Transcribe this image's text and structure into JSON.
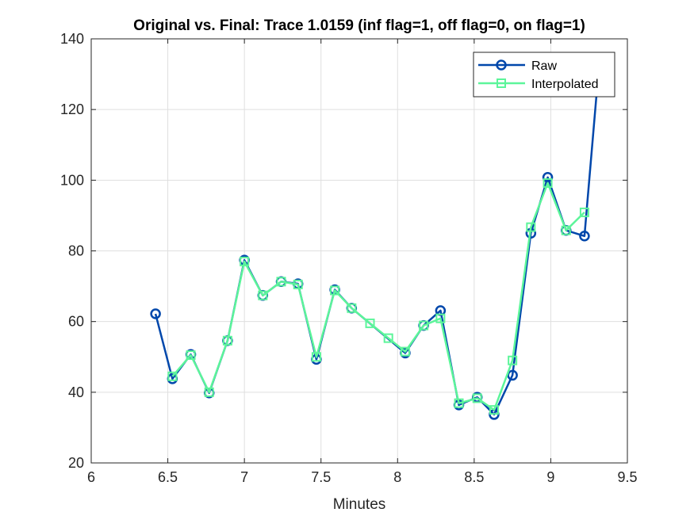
{
  "chart_data": {
    "type": "line",
    "title": "Original vs. Final: Trace 1.0159 (inf flag=1, off flag=0, on flag=1)",
    "xlabel": "Minutes",
    "ylabel": "",
    "xlim": [
      6,
      9.5
    ],
    "ylim": [
      20,
      140
    ],
    "xticks": [
      6,
      6.5,
      7,
      7.5,
      8,
      8.5,
      9,
      9.5
    ],
    "xtick_labels": [
      "6",
      "6.5",
      "7",
      "7.5",
      "8",
      "8.5",
      "9",
      "9.5"
    ],
    "yticks": [
      20,
      40,
      60,
      80,
      100,
      120,
      140
    ],
    "ytick_labels": [
      "20",
      "40",
      "60",
      "80",
      "100",
      "120",
      "140"
    ],
    "grid": true,
    "legend_position": "top-right",
    "series": [
      {
        "name": "Raw",
        "color": "#0047ab",
        "marker": "circle",
        "x": [
          6.42,
          6.53,
          6.65,
          6.77,
          6.89,
          7.0,
          7.12,
          7.24,
          7.35,
          7.47,
          7.59,
          7.7,
          8.05,
          8.17,
          8.28,
          8.4,
          8.52,
          8.63,
          8.75,
          8.87,
          8.98,
          9.1,
          9.22,
          9.3
        ],
        "y": [
          62.2,
          43.8,
          50.7,
          39.8,
          54.6,
          77.4,
          67.4,
          71.3,
          70.7,
          49.3,
          69.0,
          63.8,
          51.1,
          58.9,
          63.1,
          36.4,
          38.6,
          33.7,
          44.8,
          85.0,
          100.8,
          85.8,
          84.2,
          125
        ]
      },
      {
        "name": "Interpolated",
        "color": "#5cf59a",
        "marker": "square",
        "x": [
          6.53,
          6.65,
          6.77,
          6.89,
          7.0,
          7.12,
          7.24,
          7.35,
          7.47,
          7.59,
          7.7,
          7.82,
          7.94,
          8.05,
          8.17,
          8.28,
          8.4,
          8.52,
          8.63,
          8.75,
          8.87,
          8.98,
          9.1,
          9.22
        ],
        "y": [
          44.5,
          50.5,
          40.0,
          54.6,
          77.0,
          67.4,
          71.3,
          70.5,
          50.0,
          68.8,
          63.8,
          59.5,
          55.3,
          51.5,
          58.9,
          60.9,
          36.9,
          38.3,
          35.0,
          49.0,
          86.7,
          99.2,
          85.8,
          90.9
        ]
      }
    ]
  }
}
